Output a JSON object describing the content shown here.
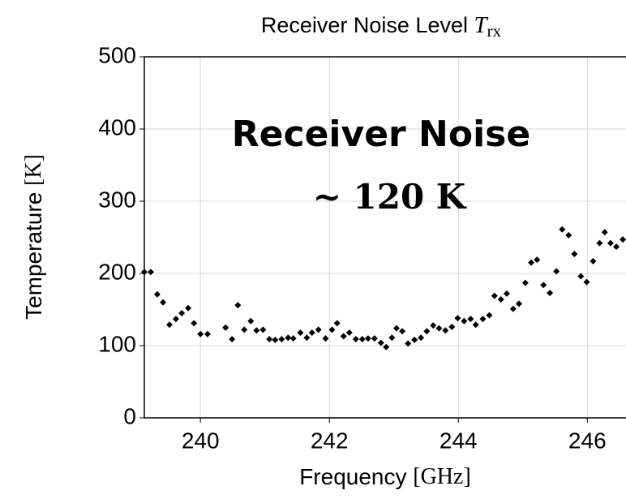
{
  "chart_data": {
    "type": "scatter",
    "title": "Receiver Noise Level",
    "title_symbol": "T",
    "title_subscript": "rx",
    "x_label": "Frequency",
    "x_unit": "[GHz]",
    "y_label": "Temperature",
    "y_unit": "[K]",
    "annotations": [
      "Receiver Noise",
      "~ 120 K"
    ],
    "annotation_color": "#c00000",
    "color": "#000000",
    "grid": true,
    "xlim": [
      239.13,
      246.6
    ],
    "xticks": [
      240,
      242,
      244,
      246
    ],
    "ylim": [
      0,
      500
    ],
    "yticks": [
      0,
      100,
      200,
      300,
      400,
      500
    ],
    "x": [
      239.13,
      239.23,
      239.33,
      239.42,
      239.52,
      239.62,
      239.71,
      239.81,
      239.9,
      240.0,
      240.11,
      240.39,
      240.49,
      240.58,
      240.68,
      240.78,
      240.87,
      240.97,
      241.07,
      241.16,
      241.26,
      241.36,
      241.44,
      241.55,
      241.65,
      241.73,
      241.83,
      241.94,
      242.04,
      242.12,
      242.22,
      242.31,
      242.41,
      242.51,
      242.6,
      242.7,
      242.8,
      242.88,
      242.97,
      243.04,
      243.13,
      243.22,
      243.32,
      243.42,
      243.51,
      243.61,
      243.7,
      243.8,
      243.9,
      243.99,
      244.09,
      244.19,
      244.27,
      244.38,
      244.48,
      244.56,
      244.66,
      244.75,
      244.85,
      244.94,
      245.04,
      245.13,
      245.22,
      245.32,
      245.42,
      245.52,
      245.61,
      245.71,
      245.8,
      245.9,
      245.99,
      246.09,
      246.19,
      246.27,
      246.36,
      246.45,
      246.55
    ],
    "values": [
      202,
      202,
      171,
      160,
      129,
      137,
      145,
      152,
      131,
      116,
      116,
      125,
      109,
      156,
      122,
      134,
      121,
      122,
      109,
      108,
      109,
      111,
      110,
      118,
      111,
      118,
      122,
      110,
      122,
      131,
      113,
      118,
      109,
      109,
      110,
      110,
      104,
      98,
      111,
      124,
      120,
      103,
      108,
      111,
      120,
      128,
      124,
      121,
      126,
      138,
      134,
      137,
      129,
      137,
      142,
      169,
      164,
      172,
      151,
      158,
      187,
      215,
      219,
      184,
      173,
      203,
      261,
      253,
      227,
      196,
      188,
      217,
      242,
      257,
      242,
      237,
      247
    ]
  }
}
